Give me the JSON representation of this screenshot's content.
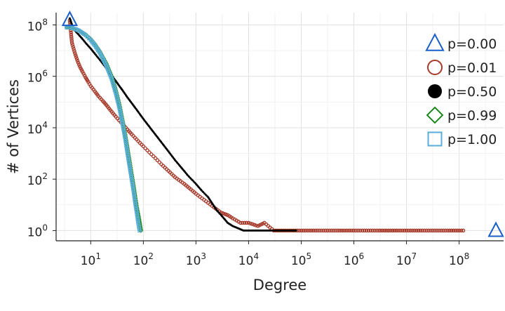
{
  "chart_data": {
    "type": "scatter",
    "title": "",
    "xlabel": "Degree",
    "ylabel": "# of Vertices",
    "xscale": "log",
    "yscale": "log",
    "xlim": [
      2.2,
      700000000
    ],
    "ylim": [
      0.4,
      300000000
    ],
    "grid": true,
    "legend_position": "right",
    "x_ticks": [
      {
        "base": "10",
        "exp": "1",
        "value": 10
      },
      {
        "base": "10",
        "exp": "2",
        "value": 100
      },
      {
        "base": "10",
        "exp": "3",
        "value": 1000
      },
      {
        "base": "10",
        "exp": "4",
        "value": 10000
      },
      {
        "base": "10",
        "exp": "5",
        "value": 100000
      },
      {
        "base": "10",
        "exp": "6",
        "value": 1000000
      },
      {
        "base": "10",
        "exp": "7",
        "value": 10000000
      },
      {
        "base": "10",
        "exp": "8",
        "value": 100000000
      }
    ],
    "y_ticks": [
      {
        "base": "10",
        "exp": "0",
        "value": 1
      },
      {
        "base": "10",
        "exp": "2",
        "value": 100
      },
      {
        "base": "10",
        "exp": "4",
        "value": 10000
      },
      {
        "base": "10",
        "exp": "6",
        "value": 1000000
      },
      {
        "base": "10",
        "exp": "8",
        "value": 100000000
      }
    ],
    "series": [
      {
        "name": "p=0.00",
        "marker": "triangle",
        "color": "#1a5fc9",
        "points": [
          [
            4,
            160000000
          ],
          [
            500000000,
            1
          ]
        ]
      },
      {
        "name": "p=0.01",
        "marker": "circle-open",
        "color": "#a63a2b",
        "points": [
          [
            4,
            150000000
          ],
          [
            4.4,
            20000000
          ],
          [
            5,
            8000000
          ],
          [
            5.6,
            4000000
          ],
          [
            6.2,
            2400000
          ],
          [
            7,
            1500000
          ],
          [
            8,
            900000
          ],
          [
            9,
            600000
          ],
          [
            10,
            420000
          ],
          [
            12,
            260000
          ],
          [
            14,
            170000
          ],
          [
            17,
            110000
          ],
          [
            20,
            75000
          ],
          [
            25,
            42000
          ],
          [
            30,
            27000
          ],
          [
            40,
            14000
          ],
          [
            50,
            8500
          ],
          [
            60,
            5600
          ],
          [
            80,
            3000
          ],
          [
            100,
            1900
          ],
          [
            130,
            1100
          ],
          [
            170,
            650
          ],
          [
            220,
            380
          ],
          [
            300,
            210
          ],
          [
            400,
            120
          ],
          [
            600,
            65
          ],
          [
            800,
            40
          ],
          [
            1000,
            27
          ],
          [
            1300,
            18
          ],
          [
            1700,
            12
          ],
          [
            2200,
            8
          ],
          [
            3000,
            5
          ],
          [
            4000,
            4
          ],
          [
            5000,
            3
          ],
          [
            7000,
            2
          ],
          [
            10000,
            2
          ],
          [
            15000,
            1.5
          ],
          [
            20000,
            2
          ],
          [
            30000,
            1
          ],
          [
            50000,
            1
          ],
          [
            100000,
            1
          ],
          [
            200000,
            1
          ],
          [
            500000,
            1
          ],
          [
            1000000,
            1
          ],
          [
            3000000,
            1
          ],
          [
            7000000,
            1
          ],
          [
            20000000,
            1
          ],
          [
            60000000,
            1
          ],
          [
            120000000,
            1
          ]
        ]
      },
      {
        "name": "p=0.50",
        "marker": "circle-filled",
        "color": "#000000",
        "points": [
          [
            4,
            180000000
          ],
          [
            4.5,
            90000000
          ],
          [
            5,
            60000000
          ],
          [
            6,
            40000000
          ],
          [
            7,
            28000000
          ],
          [
            8,
            20000000
          ],
          [
            10,
            12000000
          ],
          [
            12,
            7500000
          ],
          [
            15,
            4300000
          ],
          [
            20,
            2000000
          ],
          [
            25,
            1100000
          ],
          [
            30,
            650000
          ],
          [
            40,
            290000
          ],
          [
            50,
            150000
          ],
          [
            70,
            60000
          ],
          [
            100,
            22000
          ],
          [
            150,
            7500
          ],
          [
            200,
            3500
          ],
          [
            300,
            1200
          ],
          [
            400,
            550
          ],
          [
            500,
            320
          ],
          [
            700,
            140
          ],
          [
            1000,
            65
          ],
          [
            1300,
            35
          ],
          [
            1700,
            20
          ],
          [
            2000,
            12
          ],
          [
            2500,
            6
          ],
          [
            3000,
            4
          ],
          [
            4000,
            2
          ],
          [
            5000,
            1.5
          ],
          [
            8000,
            1
          ],
          [
            20000,
            1
          ],
          [
            50000,
            1
          ],
          [
            80000,
            1
          ]
        ]
      },
      {
        "name": "p=0.99",
        "marker": "diamond",
        "color": "#1e8a1e",
        "points": [
          [
            3.5,
            80000000
          ],
          [
            4,
            80000000
          ],
          [
            5,
            70000000
          ],
          [
            6,
            60000000
          ],
          [
            8,
            42000000
          ],
          [
            10,
            28000000
          ],
          [
            12,
            18000000
          ],
          [
            15,
            9000000
          ],
          [
            20,
            3000000
          ],
          [
            25,
            1000000
          ],
          [
            30,
            280000
          ],
          [
            35,
            80000
          ],
          [
            40,
            20000
          ],
          [
            45,
            5500
          ],
          [
            50,
            1500
          ],
          [
            55,
            450
          ],
          [
            60,
            150
          ],
          [
            65,
            55
          ],
          [
            70,
            20
          ],
          [
            75,
            8
          ],
          [
            80,
            4
          ],
          [
            85,
            2
          ],
          [
            90,
            1
          ]
        ]
      },
      {
        "name": "p=1.00",
        "marker": "square-open",
        "color": "#5aaed8",
        "points": [
          [
            3.5,
            80000000
          ],
          [
            4,
            80000000
          ],
          [
            5,
            70000000
          ],
          [
            6,
            60000000
          ],
          [
            8,
            40000000
          ],
          [
            10,
            26000000
          ],
          [
            12,
            16000000
          ],
          [
            15,
            8000000
          ],
          [
            20,
            2500000
          ],
          [
            25,
            800000
          ],
          [
            30,
            220000
          ],
          [
            35,
            60000
          ],
          [
            40,
            15000
          ],
          [
            45,
            4000
          ],
          [
            50,
            1000
          ],
          [
            55,
            300
          ],
          [
            60,
            100
          ],
          [
            65,
            35
          ],
          [
            70,
            12
          ],
          [
            75,
            5
          ],
          [
            80,
            2
          ],
          [
            85,
            1
          ]
        ]
      }
    ]
  }
}
